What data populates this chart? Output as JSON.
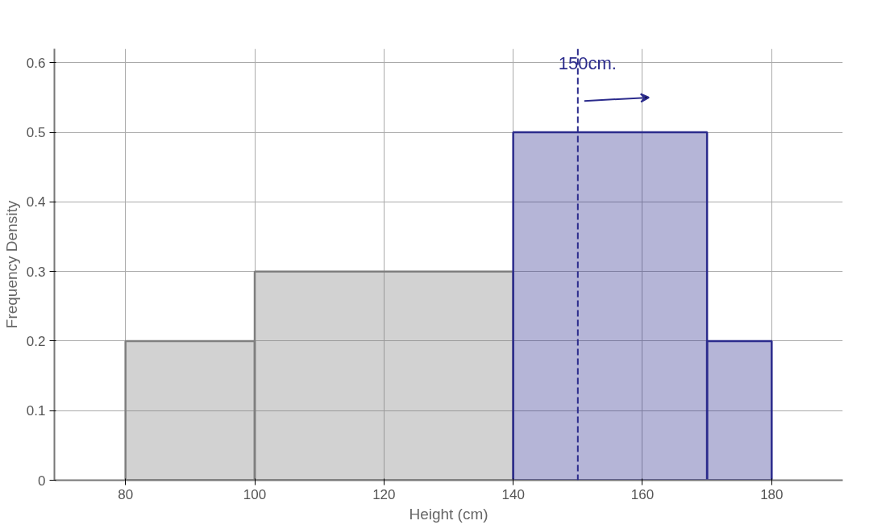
{
  "chart_data": {
    "type": "histogram",
    "xlabel": "Height (cm)",
    "ylabel": "Frequency Density",
    "bins": [
      80,
      100,
      140,
      170,
      180
    ],
    "values": [
      0.2,
      0.3,
      0.5,
      0.2
    ],
    "colors": [
      "#7f7f7f",
      "#7f7f7f",
      "#2b2b8c",
      "#2b2b8c"
    ],
    "xlim": [
      69,
      191
    ],
    "ylim": [
      0,
      0.62
    ],
    "xticks": [
      80,
      100,
      120,
      140,
      160,
      180
    ],
    "yticks": [
      0,
      0.1,
      0.2,
      0.3,
      0.4,
      0.5,
      0.6
    ],
    "grid": true,
    "ref_lines": [
      {
        "axis": "x",
        "value": 150,
        "label": "150cm.",
        "color": "#2b2b8c",
        "line_style": "dashed"
      }
    ]
  }
}
